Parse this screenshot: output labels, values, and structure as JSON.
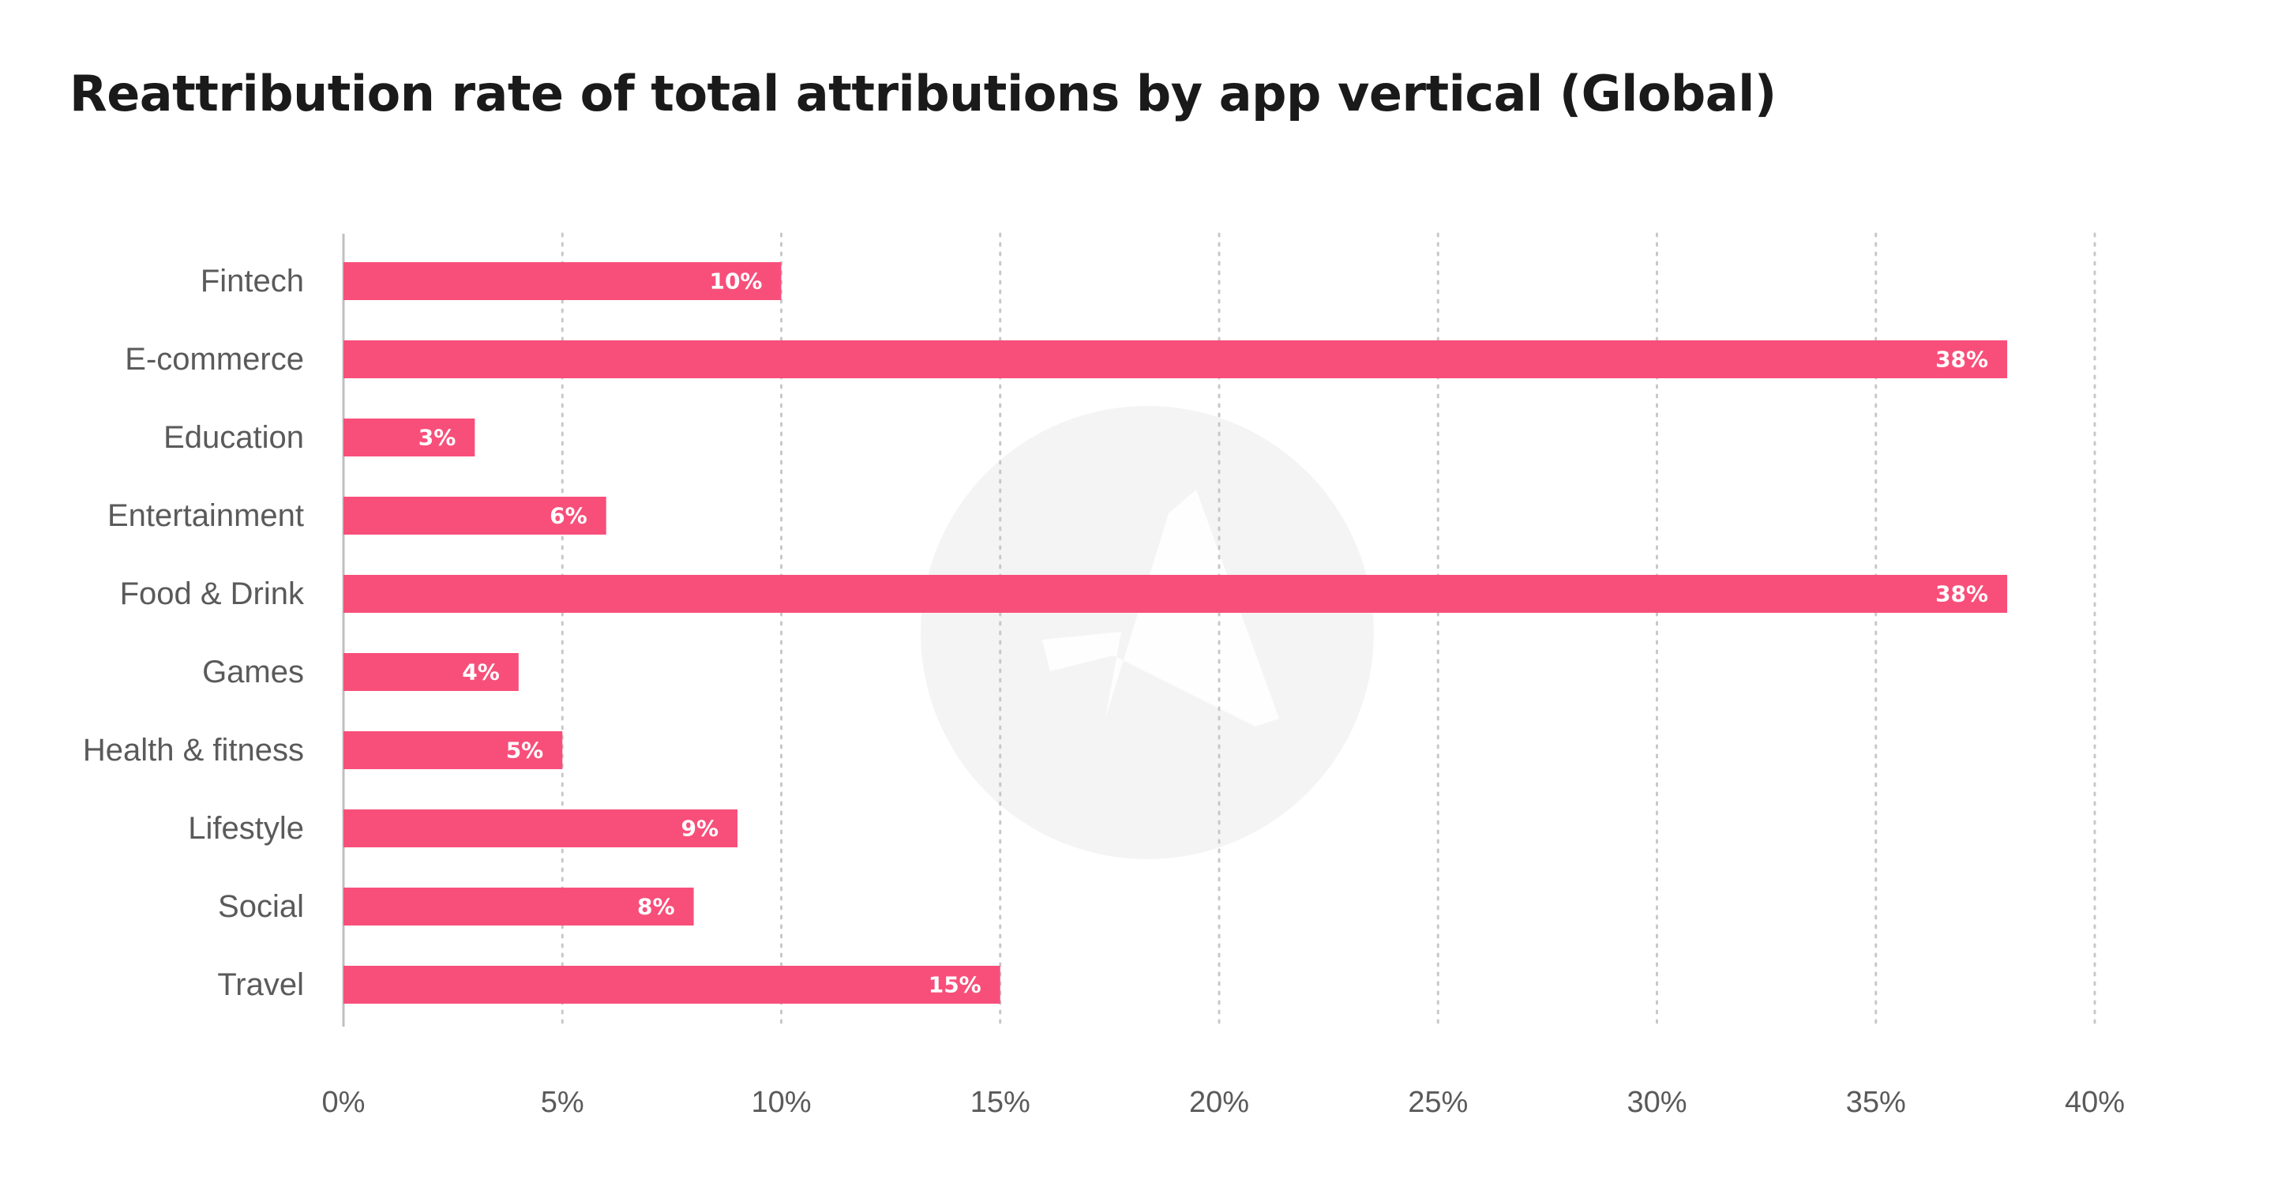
{
  "chart_data": {
    "type": "bar",
    "orientation": "horizontal",
    "title": "Reattribution rate of total attributions by app vertical (Global)",
    "categories": [
      "Fintech",
      "E-commerce",
      "Education",
      "Entertainment",
      "Food & Drink",
      "Games",
      "Health & fitness",
      "Lifestyle",
      "Social",
      "Travel"
    ],
    "values": [
      10,
      38,
      3,
      6,
      38,
      4,
      5,
      9,
      8,
      15
    ],
    "data_labels": [
      "10%",
      "38%",
      "3%",
      "6%",
      "38%",
      "4%",
      "5%",
      "9%",
      "8%",
      "15%"
    ],
    "xlim": [
      0,
      40
    ],
    "x_ticks": [
      0,
      5,
      10,
      15,
      20,
      25,
      30,
      35,
      40
    ],
    "x_tick_labels": [
      "0%",
      "5%",
      "10%",
      "15%",
      "20%",
      "25%",
      "30%",
      "35%",
      "40%"
    ],
    "grid": "vertical dotted",
    "legend": "none",
    "bar_color": "#f84f7a",
    "grid_color": "#c8c8c8",
    "axis_color": "#bfbfbf",
    "watermark_color": "#f4f4f4",
    "watermark_icon": "adjust-logo-icon"
  }
}
